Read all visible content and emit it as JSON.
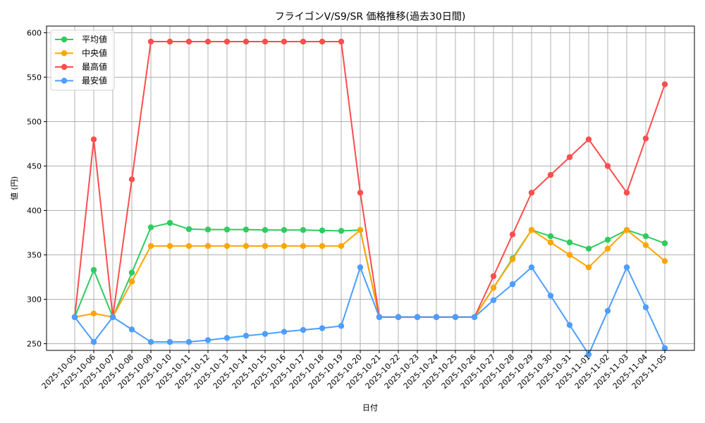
{
  "chart_data": {
    "type": "line",
    "title": "フライゴンV/S9/SR 価格推移(過去30日間)",
    "xlabel": "日付",
    "ylabel": "値 (円)",
    "ylim": [
      242.5,
      607.5
    ],
    "yticks": [
      250,
      300,
      350,
      400,
      450,
      500,
      550,
      600
    ],
    "grid": true,
    "legend_position": "upper left",
    "x": [
      "2025-10-05",
      "2025-10-06",
      "2025-10-07",
      "2025-10-08",
      "2025-10-09",
      "2025-10-10",
      "2025-10-11",
      "2025-10-12",
      "2025-10-13",
      "2025-10-14",
      "2025-10-15",
      "2025-10-16",
      "2025-10-17",
      "2025-10-18",
      "2025-10-19",
      "2025-10-20",
      "2025-10-21",
      "2025-10-22",
      "2025-10-23",
      "2025-10-24",
      "2025-10-25",
      "2025-10-26",
      "2025-10-27",
      "2025-10-28",
      "2025-10-29",
      "2025-10-30",
      "2025-10-31",
      "2025-11-01",
      "2025-11-02",
      "2025-11-03",
      "2025-11-04",
      "2025-11-05"
    ],
    "series": [
      {
        "name": "平均値",
        "color": "#2ecc5f",
        "values": [
          280,
          333,
          280,
          330,
          381,
          386,
          379,
          378.5,
          378.5,
          378.5,
          378,
          378,
          378,
          377.5,
          377,
          378,
          280,
          280,
          280,
          280,
          280,
          280,
          313,
          346,
          378,
          371,
          364,
          357,
          367,
          378,
          371,
          363
        ]
      },
      {
        "name": "中央値",
        "color": "#ffa500",
        "values": [
          280,
          284,
          280,
          320,
          360,
          360,
          360,
          360,
          360,
          360,
          360,
          360,
          360,
          360,
          360,
          378,
          280,
          280,
          280,
          280,
          280,
          280,
          313,
          345,
          378,
          364,
          350,
          336,
          357,
          378,
          361,
          343
        ]
      },
      {
        "name": "最高値",
        "color": "#ff4d4d",
        "values": [
          280,
          480,
          280,
          435,
          590,
          590,
          590,
          590,
          590,
          590,
          590,
          590,
          590,
          590,
          590,
          420,
          280,
          280,
          280,
          280,
          280,
          280,
          326,
          373,
          420,
          440,
          460,
          480,
          450,
          420,
          481,
          542
        ]
      },
      {
        "name": "最安値",
        "color": "#4d9eff",
        "values": [
          280,
          252,
          280,
          266,
          252,
          252,
          252,
          254,
          256.5,
          259,
          261,
          263.5,
          265.5,
          267.5,
          270,
          336,
          280,
          280,
          280,
          280,
          280,
          280,
          299,
          317,
          336,
          304,
          271,
          238,
          287,
          336,
          291,
          245
        ]
      }
    ]
  }
}
